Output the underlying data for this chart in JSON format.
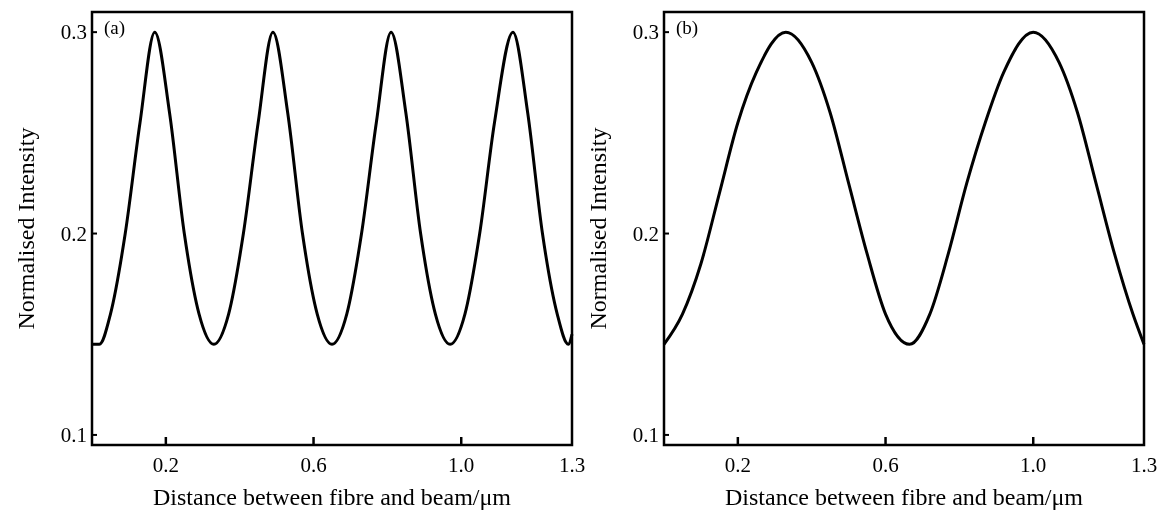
{
  "chart_data": [
    {
      "type": "line",
      "title": "(a)",
      "xlabel": "Distance between fibre and beam/μm",
      "ylabel": "Normalised Intensity",
      "xlim": [
        0,
        1.3
      ],
      "xticks": [
        0.2,
        0.6,
        {
          "value": 1.0,
          "label": "1.0"
        },
        1.3
      ],
      "ylim": [
        0.095,
        0.31
      ],
      "yticks": [
        0.1,
        0.2,
        0.3
      ],
      "grid": false,
      "series": [
        {
          "color": "#000000",
          "x": [
            0,
            0.02,
            0.05,
            0.09,
            0.13,
            0.17,
            0.21,
            0.25,
            0.29,
            0.33,
            0.37,
            0.41,
            0.45,
            0.49,
            0.53,
            0.57,
            0.61,
            0.65,
            0.69,
            0.73,
            0.77,
            0.81,
            0.85,
            0.89,
            0.93,
            0.97,
            1.01,
            1.05,
            1.09,
            1.14,
            1.18,
            1.22,
            1.26,
            1.29,
            1.3
          ],
          "values": [
            0.145,
            0.145,
            0.16,
            0.2,
            0.255,
            0.3,
            0.26,
            0.2,
            0.16,
            0.145,
            0.16,
            0.2,
            0.255,
            0.3,
            0.26,
            0.2,
            0.16,
            0.145,
            0.16,
            0.2,
            0.255,
            0.3,
            0.26,
            0.2,
            0.16,
            0.145,
            0.16,
            0.2,
            0.255,
            0.3,
            0.26,
            0.2,
            0.16,
            0.145,
            0.15
          ]
        }
      ]
    },
    {
      "type": "line",
      "title": "(b)",
      "xlabel": "Distance between fibre and beam/μm",
      "ylabel": "Normalised Intensity",
      "xlim": [
        0,
        1.3
      ],
      "xticks": [
        0.2,
        0.6,
        {
          "value": 1.0,
          "label": "1.0"
        },
        1.3
      ],
      "ylim": [
        0.095,
        0.31
      ],
      "yticks": [
        0.1,
        0.2,
        0.3
      ],
      "grid": false,
      "series": [
        {
          "color": "#000000",
          "x": [
            0,
            0.05,
            0.1,
            0.15,
            0.2,
            0.25,
            0.33,
            0.4,
            0.45,
            0.5,
            0.55,
            0.6,
            0.665,
            0.72,
            0.77,
            0.82,
            0.87,
            0.92,
            1.0,
            1.07,
            1.12,
            1.17,
            1.22,
            1.27,
            1.3
          ],
          "values": [
            0.145,
            0.16,
            0.185,
            0.22,
            0.255,
            0.28,
            0.3,
            0.285,
            0.26,
            0.225,
            0.19,
            0.16,
            0.145,
            0.16,
            0.19,
            0.225,
            0.255,
            0.28,
            0.3,
            0.285,
            0.26,
            0.225,
            0.19,
            0.16,
            0.145
          ]
        }
      ]
    }
  ]
}
